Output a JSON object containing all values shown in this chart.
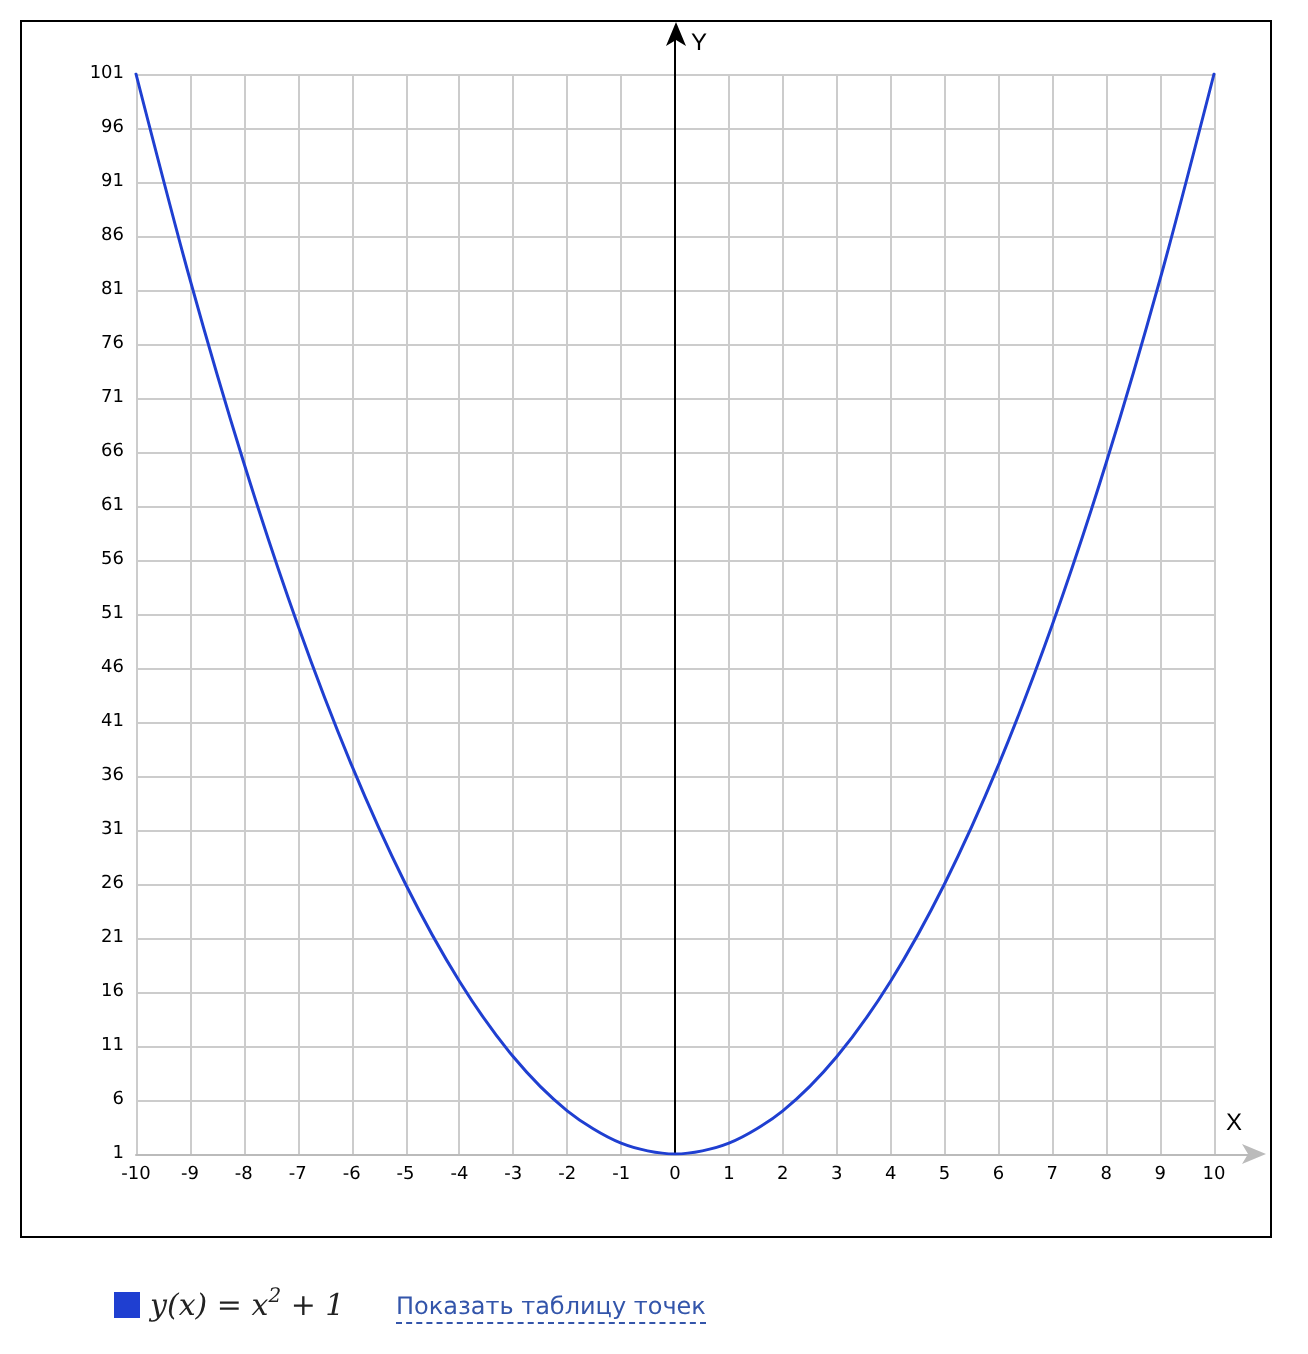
{
  "chart_data": {
    "type": "line",
    "xlabel": "X",
    "ylabel": "Y",
    "x": [
      -10,
      -9,
      -8,
      -7,
      -6,
      -5,
      -4,
      -3,
      -2,
      -1,
      0,
      1,
      2,
      3,
      4,
      5,
      6,
      7,
      8,
      9,
      10
    ],
    "series": [
      {
        "name": "y(x) = x$^{2}$ + 1",
        "color": "#1f3fd1",
        "values": [
          101,
          82,
          65,
          50,
          37,
          26,
          17,
          10,
          5,
          2,
          1,
          2,
          5,
          10,
          17,
          26,
          37,
          50,
          65,
          82,
          101
        ]
      }
    ],
    "xlim": [
      -10,
      10
    ],
    "xticks": [
      -10,
      -9,
      -8,
      -7,
      -6,
      -5,
      -4,
      -3,
      -2,
      -1,
      0,
      1,
      2,
      3,
      4,
      5,
      6,
      7,
      8,
      9,
      10
    ],
    "ylim": [
      1,
      101
    ],
    "yticks": [
      1,
      6,
      11,
      16,
      21,
      26,
      31,
      36,
      41,
      46,
      51,
      56,
      61,
      66,
      71,
      76,
      81,
      86,
      91,
      96,
      101
    ],
    "grid": true,
    "legend": "bottom left",
    "marker": "none",
    "line_style": "solid",
    "annotations": [
      "Показать таблицу точек"
    ]
  }
}
